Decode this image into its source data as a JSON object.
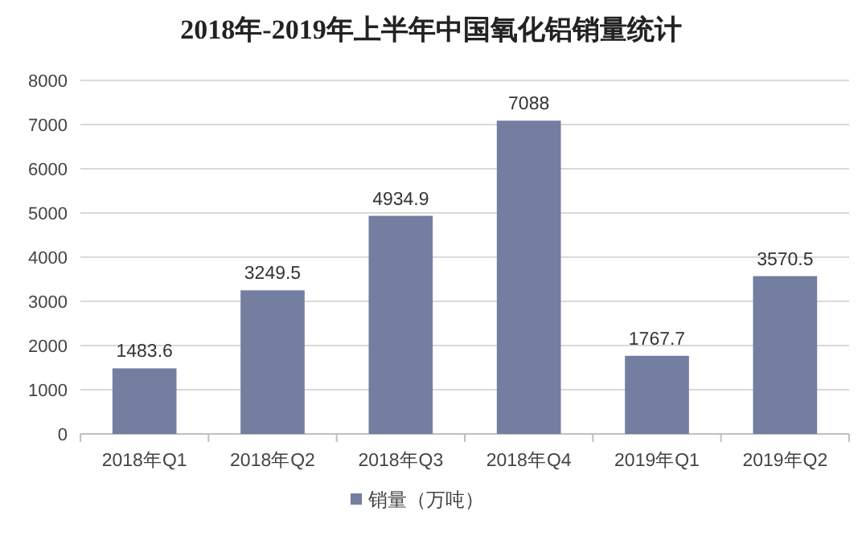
{
  "chart_data": {
    "type": "bar",
    "title": "2018年-2019年上半年中国氧化铝销量统计",
    "categories": [
      "2018年Q1",
      "2018年Q2",
      "2018年Q3",
      "2018年Q4",
      "2019年Q1",
      "2019年Q2"
    ],
    "series": [
      {
        "name": "销量（万吨）",
        "color": "#737ea0",
        "values": [
          1483.6,
          3249.5,
          4934.9,
          7088,
          1767.7,
          3570.5
        ]
      }
    ],
    "ylim": [
      0,
      8000
    ],
    "yticks": [
      0,
      1000,
      2000,
      3000,
      4000,
      5000,
      6000,
      7000,
      8000
    ],
    "grid": "y",
    "legend": "bottom",
    "data_labels": true
  }
}
